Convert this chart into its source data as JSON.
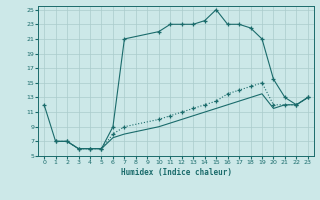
{
  "xlabel": "Humidex (Indice chaleur)",
  "xlim": [
    -0.5,
    23.5
  ],
  "ylim": [
    5,
    25.5
  ],
  "xticks": [
    0,
    1,
    2,
    3,
    4,
    5,
    6,
    7,
    8,
    9,
    10,
    11,
    12,
    13,
    14,
    15,
    16,
    17,
    18,
    19,
    20,
    21,
    22,
    23
  ],
  "yticks": [
    5,
    7,
    9,
    11,
    13,
    15,
    17,
    19,
    21,
    23,
    25
  ],
  "bg_color": "#cce8e8",
  "line_color": "#1a6b6b",
  "grid_color": "#b8d8d8",
  "line1_x": [
    0,
    1,
    2,
    3,
    4,
    5,
    6,
    7,
    10,
    11,
    12,
    13,
    14,
    15,
    16,
    17,
    18,
    19,
    20,
    21,
    22,
    23
  ],
  "line1_y": [
    12,
    7,
    7,
    6,
    6,
    6,
    9,
    21,
    22,
    23,
    23,
    23,
    23.5,
    25,
    23,
    23,
    22.5,
    21,
    15.5,
    13,
    12,
    13
  ],
  "line2_x": [
    1,
    2,
    3,
    4,
    5,
    6,
    7,
    10,
    11,
    12,
    13,
    14,
    15,
    16,
    17,
    18,
    19,
    20,
    21,
    22,
    23
  ],
  "line2_y": [
    7,
    7,
    6,
    6,
    6,
    8,
    9,
    10,
    10.5,
    11,
    11.5,
    12,
    12.5,
    13.5,
    14,
    14.5,
    15,
    12,
    12,
    12,
    13
  ],
  "line3_x": [
    1,
    2,
    3,
    4,
    5,
    6,
    7,
    10,
    11,
    12,
    13,
    14,
    15,
    16,
    17,
    18,
    19,
    20,
    21,
    22,
    23
  ],
  "line3_y": [
    7,
    7,
    6,
    6,
    6,
    7.5,
    8,
    9,
    9.5,
    10,
    10.5,
    11,
    11.5,
    12,
    12.5,
    13,
    13.5,
    11.5,
    12,
    12,
    13
  ]
}
